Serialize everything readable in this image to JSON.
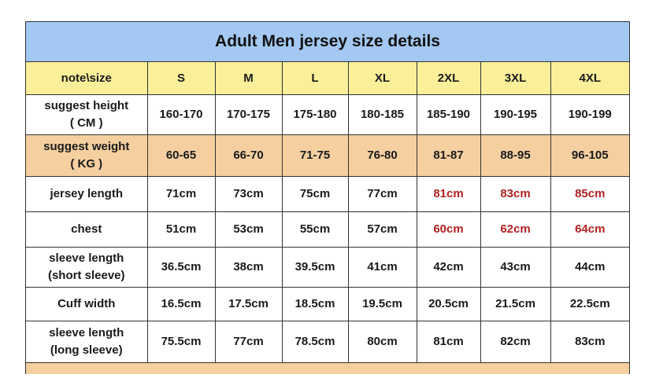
{
  "title": "Adult Men jersey size details",
  "header": [
    "note\\size",
    "S",
    "M",
    "L",
    "XL",
    "2XL",
    "3XL",
    "4XL"
  ],
  "rows": [
    {
      "label": [
        "suggest height",
        "( CM )"
      ],
      "values": [
        "160-170",
        "170-175",
        "175-180",
        "180-185",
        "185-190",
        "190-195",
        "190-199"
      ],
      "highlight": false
    },
    {
      "label": [
        "suggest weight",
        "( KG )"
      ],
      "values": [
        "60-65",
        "66-70",
        "71-75",
        "76-80",
        "81-87",
        "88-95",
        "96-105"
      ],
      "highlight": true
    },
    {
      "label": [
        "jersey length"
      ],
      "values": [
        "71cm",
        "73cm",
        "75cm",
        "77cm",
        "81cm",
        "83cm",
        "85cm"
      ],
      "red_from": 4
    },
    {
      "label": [
        "chest"
      ],
      "values": [
        "51cm",
        "53cm",
        "55cm",
        "57cm",
        "60cm",
        "62cm",
        "64cm"
      ],
      "red_from": 4
    },
    {
      "label": [
        "sleeve length",
        "(short sleeve)"
      ],
      "values": [
        "36.5cm",
        "38cm",
        "39.5cm",
        "41cm",
        "42cm",
        "43cm",
        "44cm"
      ]
    },
    {
      "label": [
        "Cuff width"
      ],
      "values": [
        "16.5cm",
        "17.5cm",
        "18.5cm",
        "19.5cm",
        "20.5cm",
        "21.5cm",
        "22.5cm"
      ]
    },
    {
      "label": [
        "sleeve length",
        "(long sleeve)"
      ],
      "values": [
        "75.5cm",
        "77cm",
        "78.5cm",
        "80cm",
        "81cm",
        "82cm",
        "83cm"
      ]
    }
  ],
  "colors": {
    "title_bg": "#a3c8f2",
    "header_bg": "#fbef9a",
    "highlight_bg": "#f5cfa0",
    "red_text": "#b22222"
  }
}
